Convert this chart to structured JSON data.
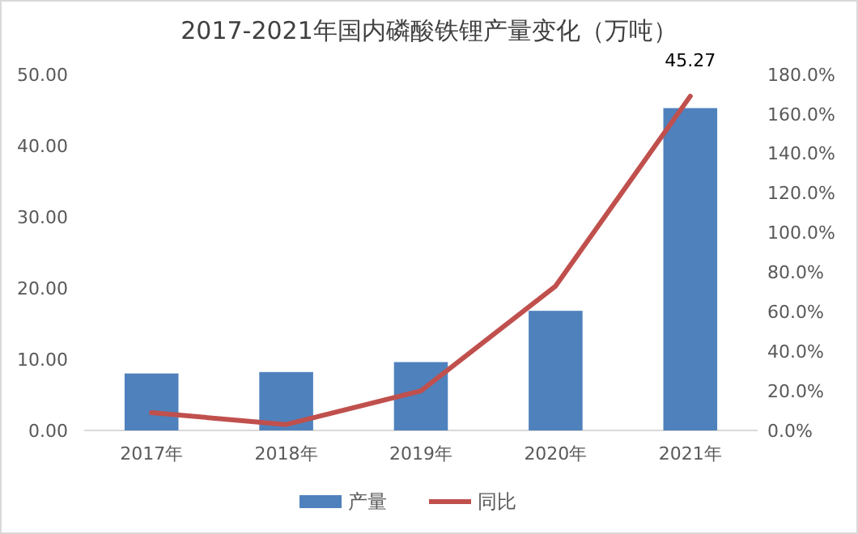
{
  "chart_data": {
    "type": "bar",
    "title": "2017-2021年国内磷酸铁锂产量变化（万吨）",
    "categories": [
      "2017年",
      "2018年",
      "2019年",
      "2020年",
      "2021年"
    ],
    "series": [
      {
        "name": "产量",
        "color": "#4f81bd",
        "values": [
          8.0,
          8.2,
          9.6,
          16.8,
          45.27
        ],
        "value_labels": [
          null,
          null,
          null,
          null,
          "45.27"
        ]
      },
      {
        "name": "同比",
        "type": "line",
        "axis": "y2",
        "color": "#c0504d",
        "values": [
          9,
          3,
          20,
          73,
          169
        ]
      }
    ],
    "ylim": [
      0,
      50
    ],
    "yticks": [
      {
        "value": 0,
        "label": "0.00"
      },
      {
        "value": 10,
        "label": "10.00"
      },
      {
        "value": 20,
        "label": "20.00"
      },
      {
        "value": 30,
        "label": "30.00"
      },
      {
        "value": 40,
        "label": "40.00"
      },
      {
        "value": 50,
        "label": "50.00"
      }
    ],
    "y2lim": [
      0,
      180
    ],
    "y2ticks": [
      {
        "value": 0,
        "label": "0.0%"
      },
      {
        "value": 20,
        "label": "20.0%"
      },
      {
        "value": 40,
        "label": "40.0%"
      },
      {
        "value": 60,
        "label": "60.0%"
      },
      {
        "value": 80,
        "label": "80.0%"
      },
      {
        "value": 100,
        "label": "100.0%"
      },
      {
        "value": 120,
        "label": "120.0%"
      },
      {
        "value": 140,
        "label": "140.0%"
      },
      {
        "value": 160,
        "label": "160.0%"
      },
      {
        "value": 180,
        "label": "180.0%"
      }
    ],
    "legend": "bottom",
    "grid": false,
    "marker": "none",
    "line_style": "solid"
  }
}
